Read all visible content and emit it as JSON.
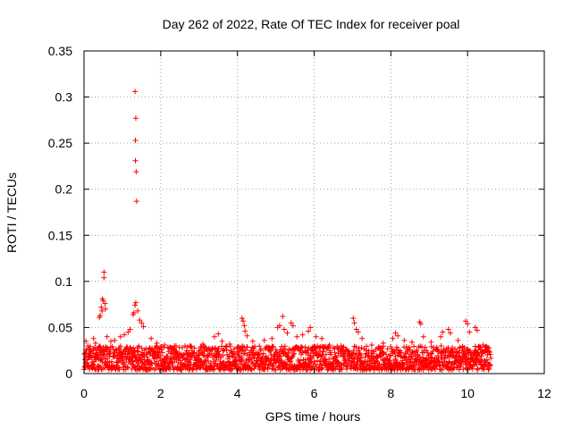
{
  "chart_data": {
    "type": "scatter",
    "title": "Day 262 of 2022, Rate Of TEC Index for receiver poal",
    "xlabel": "GPS time / hours",
    "ylabel": "ROTI / TECUs",
    "xlim": [
      0,
      12
    ],
    "ylim": [
      0,
      0.35
    ],
    "xticks": [
      "0",
      "2",
      "4",
      "6",
      "8",
      "10",
      "12"
    ],
    "yticks": [
      "0",
      "0.05",
      "0.1",
      "0.15",
      "0.2",
      "0.25",
      "0.3",
      "0.35"
    ],
    "grid": true,
    "marker": "+",
    "color": "#ff0000",
    "points": [
      [
        1.33,
        0.306
      ],
      [
        1.35,
        0.277
      ],
      [
        1.34,
        0.253
      ],
      [
        1.34,
        0.231
      ],
      [
        1.36,
        0.219
      ],
      [
        1.37,
        0.187
      ],
      [
        0.52,
        0.11
      ],
      [
        0.52,
        0.104
      ],
      [
        0.48,
        0.081
      ],
      [
        0.5,
        0.079
      ],
      [
        0.55,
        0.076
      ],
      [
        0.45,
        0.072
      ],
      [
        0.42,
        0.063
      ],
      [
        0.4,
        0.061
      ],
      [
        0.56,
        0.07
      ],
      [
        0.47,
        0.068
      ],
      [
        1.35,
        0.077
      ],
      [
        1.33,
        0.074
      ],
      [
        1.3,
        0.066
      ],
      [
        1.28,
        0.064
      ],
      [
        1.4,
        0.068
      ],
      [
        1.45,
        0.058
      ],
      [
        1.5,
        0.055
      ],
      [
        1.55,
        0.051
      ],
      [
        1.2,
        0.048
      ],
      [
        1.15,
        0.045
      ],
      [
        0.05,
        0.035
      ],
      [
        0.1,
        0.03
      ],
      [
        0.25,
        0.038
      ],
      [
        0.3,
        0.033
      ],
      [
        0.6,
        0.04
      ],
      [
        0.7,
        0.035
      ],
      [
        0.8,
        0.036
      ],
      [
        0.95,
        0.04
      ],
      [
        1.05,
        0.042
      ],
      [
        1.75,
        0.038
      ],
      [
        1.9,
        0.033
      ],
      [
        2.1,
        0.031
      ],
      [
        2.4,
        0.03
      ],
      [
        2.7,
        0.029
      ],
      [
        3.1,
        0.032
      ],
      [
        3.4,
        0.04
      ],
      [
        3.5,
        0.043
      ],
      [
        3.6,
        0.035
      ],
      [
        3.8,
        0.032
      ],
      [
        4.12,
        0.06
      ],
      [
        4.15,
        0.057
      ],
      [
        4.18,
        0.052
      ],
      [
        4.2,
        0.046
      ],
      [
        4.25,
        0.041
      ],
      [
        4.4,
        0.035
      ],
      [
        4.7,
        0.036
      ],
      [
        4.9,
        0.038
      ],
      [
        5.05,
        0.05
      ],
      [
        5.1,
        0.052
      ],
      [
        5.18,
        0.062
      ],
      [
        5.22,
        0.048
      ],
      [
        5.3,
        0.044
      ],
      [
        5.4,
        0.055
      ],
      [
        5.45,
        0.052
      ],
      [
        5.55,
        0.04
      ],
      [
        5.7,
        0.042
      ],
      [
        5.85,
        0.046
      ],
      [
        5.9,
        0.05
      ],
      [
        6.05,
        0.04
      ],
      [
        6.2,
        0.038
      ],
      [
        6.4,
        0.031
      ],
      [
        6.7,
        0.03
      ],
      [
        7.02,
        0.06
      ],
      [
        7.05,
        0.055
      ],
      [
        7.1,
        0.048
      ],
      [
        7.15,
        0.045
      ],
      [
        7.25,
        0.038
      ],
      [
        7.5,
        0.031
      ],
      [
        7.8,
        0.033
      ],
      [
        8.05,
        0.038
      ],
      [
        8.12,
        0.044
      ],
      [
        8.18,
        0.041
      ],
      [
        8.35,
        0.036
      ],
      [
        8.55,
        0.034
      ],
      [
        8.75,
        0.056
      ],
      [
        8.78,
        0.054
      ],
      [
        8.85,
        0.04
      ],
      [
        9.05,
        0.034
      ],
      [
        9.3,
        0.04
      ],
      [
        9.35,
        0.045
      ],
      [
        9.5,
        0.048
      ],
      [
        9.55,
        0.044
      ],
      [
        9.75,
        0.036
      ],
      [
        9.95,
        0.057
      ],
      [
        10.0,
        0.054
      ],
      [
        10.05,
        0.045
      ],
      [
        10.2,
        0.05
      ],
      [
        10.25,
        0.047
      ],
      [
        10.4,
        0.031
      ],
      [
        10.55,
        0.028
      ]
    ],
    "baseline_band": {
      "x_range": [
        0,
        10.6
      ],
      "y_range": [
        0.004,
        0.03
      ]
    }
  }
}
